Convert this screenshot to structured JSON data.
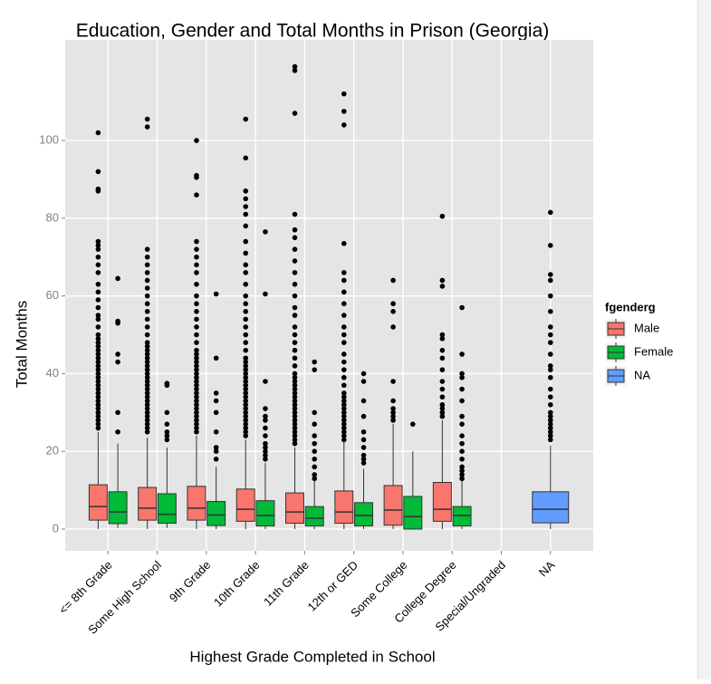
{
  "chart_data": {
    "type": "boxplot",
    "title": "Education, Gender and Total Months in Prison (Georgia)",
    "x_label": "Highest Grade Completed in School",
    "y_label": "Total Months",
    "legend_title": "fgenderg",
    "legend_position": "right",
    "grid": true,
    "categories": [
      "<= 8th Grade",
      "Some High School",
      "9th Grade",
      "10th Grade",
      "11th Grade",
      "12th or GED",
      "Some College",
      "College Degree",
      "Special/Ungraded",
      "NA"
    ],
    "ylim": [
      -5.6,
      125.9
    ],
    "yticks": [
      0,
      20,
      40,
      60,
      80,
      100
    ],
    "series": [
      {
        "name": "Male",
        "color": "#F8766D",
        "values": [
          {
            "low": 0,
            "q1": 2.3,
            "median": 5.8,
            "q3": 11.4,
            "high": 25,
            "outliers": [
              26,
              27,
              28,
              29,
              30,
              31,
              32,
              33,
              34,
              35,
              36,
              37,
              38,
              39,
              40,
              41,
              42,
              43,
              44,
              45,
              46,
              47,
              48,
              49,
              50,
              52,
              54,
              55,
              57,
              59,
              61,
              63,
              66,
              68,
              70,
              72,
              73,
              74,
              87,
              87.5,
              92,
              102
            ]
          },
          {
            "low": 0,
            "q1": 2.3,
            "median": 5.4,
            "q3": 10.7,
            "high": 23.5,
            "outliers": [
              25,
              26,
              27,
              28,
              29,
              30,
              31,
              32,
              33,
              34,
              35,
              36,
              37,
              38,
              39,
              40,
              41,
              42,
              43,
              44,
              45,
              46,
              47,
              48,
              50,
              52,
              54,
              56,
              58,
              60,
              62,
              64,
              66,
              68,
              70,
              72,
              103.5,
              105.5
            ]
          },
          {
            "low": 0,
            "q1": 2.3,
            "median": 5.4,
            "q3": 11,
            "high": 24,
            "outliers": [
              25,
              26,
              27,
              28,
              29,
              30,
              31,
              32,
              33,
              34,
              35,
              36,
              37,
              38,
              39,
              40,
              41,
              42,
              43,
              44,
              45,
              46,
              48,
              50,
              52,
              54,
              56,
              58,
              60,
              63,
              66,
              68,
              70,
              72,
              74,
              86,
              90.5,
              91,
              100
            ]
          },
          {
            "low": 0,
            "q1": 2,
            "median": 5.1,
            "q3": 10.3,
            "high": 23,
            "outliers": [
              24,
              25,
              26,
              27,
              28,
              29,
              30,
              31,
              32,
              33,
              34,
              35,
              36,
              37,
              38,
              39,
              40,
              41,
              42,
              43,
              44,
              46,
              48,
              50,
              52,
              54,
              56,
              58,
              60,
              63,
              66,
              68,
              71,
              74,
              78,
              81,
              83,
              85,
              87,
              95.5,
              105.5
            ]
          },
          {
            "low": 0,
            "q1": 1.5,
            "median": 4.4,
            "q3": 9.3,
            "high": 21,
            "outliers": [
              22,
              23,
              24,
              25,
              26,
              27,
              28,
              29,
              30,
              31,
              32,
              33,
              34,
              35,
              36,
              37,
              38,
              39,
              40,
              42,
              44,
              46,
              48,
              50,
              52,
              55,
              57,
              60,
              63,
              66,
              69,
              72,
              75,
              77,
              81,
              107,
              118,
              119
            ]
          },
          {
            "low": 0,
            "q1": 1.5,
            "median": 4.4,
            "q3": 9.8,
            "high": 22.5,
            "outliers": [
              23,
              24,
              25,
              26,
              27,
              28,
              29,
              30,
              31,
              32,
              33,
              34,
              35,
              37,
              39,
              41,
              43,
              45,
              48,
              50,
              52,
              55,
              58,
              61,
              64,
              66,
              73.5,
              104,
              107.5,
              112
            ]
          },
          {
            "low": 0,
            "q1": 1,
            "median": 4.9,
            "q3": 11.2,
            "high": 27,
            "outliers": [
              28,
              29,
              30,
              31,
              33,
              38,
              52,
              56,
              58,
              64
            ]
          },
          {
            "low": 0,
            "q1": 2,
            "median": 5.1,
            "q3": 12,
            "high": 28,
            "outliers": [
              29,
              30,
              31,
              32,
              34,
              36,
              38,
              41,
              44,
              46,
              49,
              50,
              62.5,
              64,
              80.5
            ]
          },
          null,
          null
        ]
      },
      {
        "name": "Female",
        "color": "#00BA38",
        "values": [
          {
            "low": 0.3,
            "q1": 1.4,
            "median": 4.4,
            "q3": 9.6,
            "high": 22,
            "outliers": [
              25,
              30,
              43,
              45,
              53,
              53.5,
              64.5
            ]
          },
          {
            "low": 0.3,
            "q1": 1.5,
            "median": 3.8,
            "q3": 9.1,
            "high": 21,
            "outliers": [
              23,
              24,
              25,
              27,
              30,
              37,
              37.5
            ]
          },
          {
            "low": 0,
            "q1": 0.9,
            "median": 3.6,
            "q3": 7.1,
            "high": 16,
            "outliers": [
              18,
              20,
              21,
              25,
              30,
              33,
              35,
              44,
              60.5
            ]
          },
          {
            "low": 0,
            "q1": 0.8,
            "median": 3.5,
            "q3": 7.3,
            "high": 17,
            "outliers": [
              18,
              19,
              20,
              21,
              22,
              24,
              26,
              28,
              29,
              31,
              38,
              60.5,
              76.5
            ]
          },
          {
            "low": 0,
            "q1": 0.8,
            "median": 2.8,
            "q3": 5.8,
            "high": 12.5,
            "outliers": [
              13,
              14,
              16,
              18,
              20,
              22,
              24,
              27,
              30,
              41,
              43
            ]
          },
          {
            "low": 0,
            "q1": 0.8,
            "median": 3.5,
            "q3": 6.8,
            "high": 15.5,
            "outliers": [
              17,
              18,
              19,
              21,
              23,
              25,
              29,
              33,
              38,
              40
            ]
          },
          {
            "low": 0,
            "q1": 0,
            "median": 3.2,
            "q3": 8.4,
            "high": 20,
            "outliers": [
              27
            ]
          },
          {
            "low": 0,
            "q1": 0.8,
            "median": 3.5,
            "q3": 5.8,
            "high": 12.5,
            "outliers": [
              13,
              14,
              15,
              16,
              18,
              20,
              22,
              24,
              27,
              29,
              33,
              36,
              39,
              40,
              45,
              57
            ]
          },
          null,
          null
        ]
      },
      {
        "name": "NA",
        "color": "#619CFF",
        "values": [
          null,
          null,
          null,
          null,
          null,
          null,
          null,
          null,
          null,
          {
            "low": 0,
            "q1": 1.6,
            "median": 5.1,
            "q3": 9.6,
            "high": 21.5,
            "outliers": [
              23,
              24,
              25,
              26,
              27,
              28,
              29,
              30,
              32,
              34,
              36,
              39,
              41,
              42,
              45,
              48,
              50,
              52,
              56,
              60,
              64,
              65.5,
              73,
              81.5
            ]
          }
        ]
      }
    ]
  }
}
